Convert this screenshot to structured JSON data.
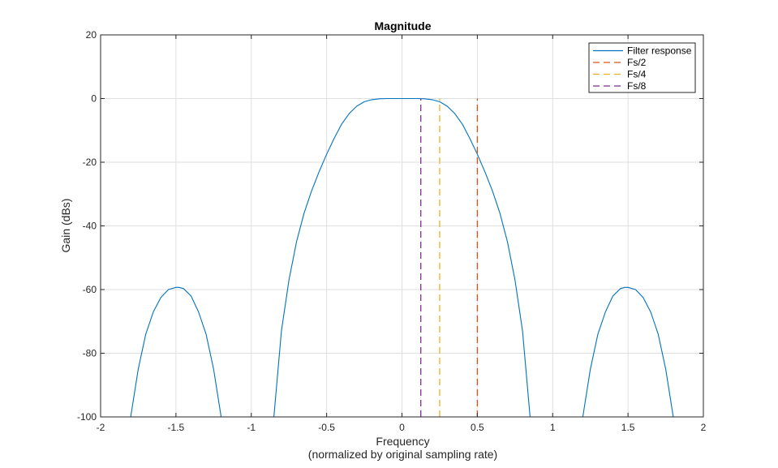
{
  "chart_data": {
    "type": "line",
    "title": "Magnitude",
    "xlabel": "Frequency",
    "xlabel_sub": "(normalized by original sampling rate)",
    "ylabel": "Gain (dBs)",
    "xlim": [
      -2,
      2
    ],
    "ylim": [
      -100,
      20
    ],
    "xticks": [
      -2,
      -1.5,
      -1,
      -0.5,
      0,
      0.5,
      1,
      1.5,
      2
    ],
    "xtick_labels": [
      "-2",
      "-1.5",
      "-1",
      "-0.5",
      "0",
      "0.5",
      "1",
      "1.5",
      "2"
    ],
    "yticks": [
      -100,
      -80,
      -60,
      -40,
      -20,
      0,
      20
    ],
    "ytick_labels": [
      "-100",
      "-80",
      "-60",
      "-40",
      "-20",
      "0",
      "20"
    ],
    "grid": true,
    "legend_position": "top-right",
    "series": [
      {
        "name": "Filter response",
        "color": "#0072BD",
        "style": "solid",
        "segments": [
          {
            "x": [
              -1.8,
              -1.75,
              -1.7,
              -1.65,
              -1.6,
              -1.55,
              -1.5,
              -1.48,
              -1.45,
              -1.4,
              -1.35,
              -1.3,
              -1.25,
              -1.2
            ],
            "y": [
              -100,
              -85,
              -74,
              -67,
              -62.5,
              -60,
              -59.3,
              -59.3,
              -59.7,
              -62,
              -67,
              -74,
              -85,
              -100
            ]
          },
          {
            "x": [
              -0.85,
              -0.8,
              -0.75,
              -0.7,
              -0.65,
              -0.6,
              -0.55,
              -0.5,
              -0.45,
              -0.4,
              -0.35,
              -0.3,
              -0.25,
              -0.2,
              -0.15,
              -0.1,
              -0.05,
              0,
              0.05,
              0.1,
              0.15,
              0.2,
              0.25,
              0.3,
              0.35,
              0.4,
              0.45,
              0.5,
              0.55,
              0.6,
              0.65,
              0.7,
              0.75,
              0.8,
              0.85
            ],
            "y": [
              -100,
              -73,
              -57,
              -45,
              -36,
              -29,
              -23,
              -17.5,
              -12.5,
              -8,
              -4.7,
              -2.4,
              -1,
              -0.35,
              -0.08,
              -0.01,
              0,
              0,
              0,
              -0.01,
              -0.08,
              -0.35,
              -1,
              -2.4,
              -4.7,
              -8,
              -12.5,
              -17.5,
              -23,
              -29,
              -36,
              -45,
              -57,
              -73,
              -100
            ]
          },
          {
            "x": [
              1.2,
              1.25,
              1.3,
              1.35,
              1.4,
              1.45,
              1.48,
              1.5,
              1.55,
              1.6,
              1.65,
              1.7,
              1.75,
              1.8
            ],
            "y": [
              -100,
              -85,
              -74,
              -67,
              -62,
              -59.7,
              -59.3,
              -59.3,
              -60,
              -62.5,
              -67,
              -74,
              -85,
              -100
            ]
          }
        ]
      },
      {
        "name": "Fs/2",
        "color": "#D95319",
        "style": "dashed",
        "x": 0.5,
        "y_range": [
          -100,
          0
        ]
      },
      {
        "name": "Fs/4",
        "color": "#EDB120",
        "style": "dashed",
        "x": 0.25,
        "y_range": [
          -100,
          0
        ]
      },
      {
        "name": "Fs/8",
        "color": "#7E2F8E",
        "style": "dashed",
        "x": 0.125,
        "y_range": [
          -100,
          0
        ]
      }
    ]
  }
}
